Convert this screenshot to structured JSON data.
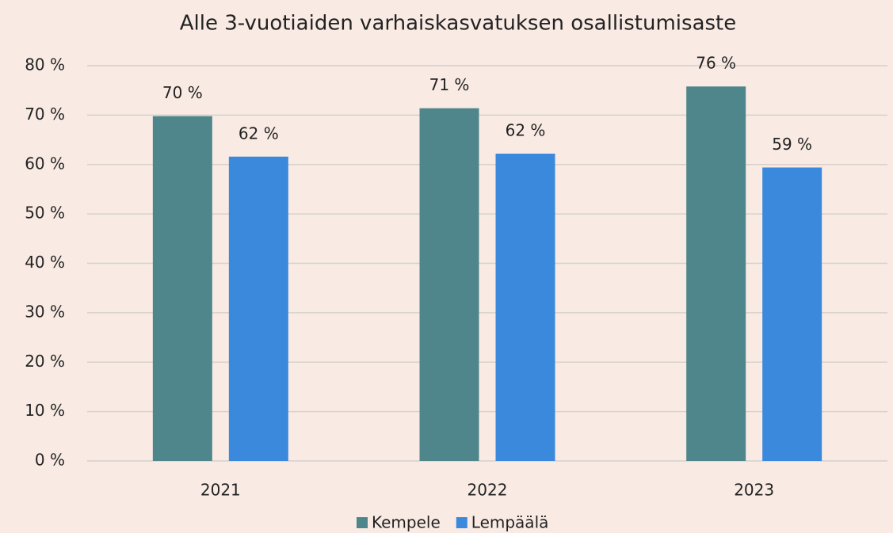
{
  "chart_data": {
    "type": "bar",
    "title": "Alle 3-vuotiaiden varhaiskasvatuksen osallistumisaste",
    "categories": [
      "2021",
      "2022",
      "2023"
    ],
    "series": [
      {
        "name": "Kempele",
        "color": "#4e868c",
        "values": [
          69.8,
          71.4,
          75.8
        ],
        "value_labels": [
          "70 %",
          "71 %",
          "76 %"
        ]
      },
      {
        "name": "Lempäälä",
        "color": "#3a89dd",
        "values": [
          61.6,
          62.2,
          59.4
        ],
        "value_labels": [
          "62 %",
          "62 %",
          "59 %"
        ]
      }
    ],
    "ylim": [
      0,
      80
    ],
    "yticks": [
      {
        "value": 0,
        "label": "0 %"
      },
      {
        "value": 10,
        "label": "10 %"
      },
      {
        "value": 20,
        "label": "20 %"
      },
      {
        "value": 30,
        "label": "30 %"
      },
      {
        "value": 40,
        "label": "40 %"
      },
      {
        "value": 50,
        "label": "50 %"
      },
      {
        "value": 60,
        "label": "60 %"
      },
      {
        "value": 70,
        "label": "70 %"
      },
      {
        "value": 80,
        "label": "80 %"
      }
    ],
    "grid": true,
    "legend": "bottom"
  }
}
